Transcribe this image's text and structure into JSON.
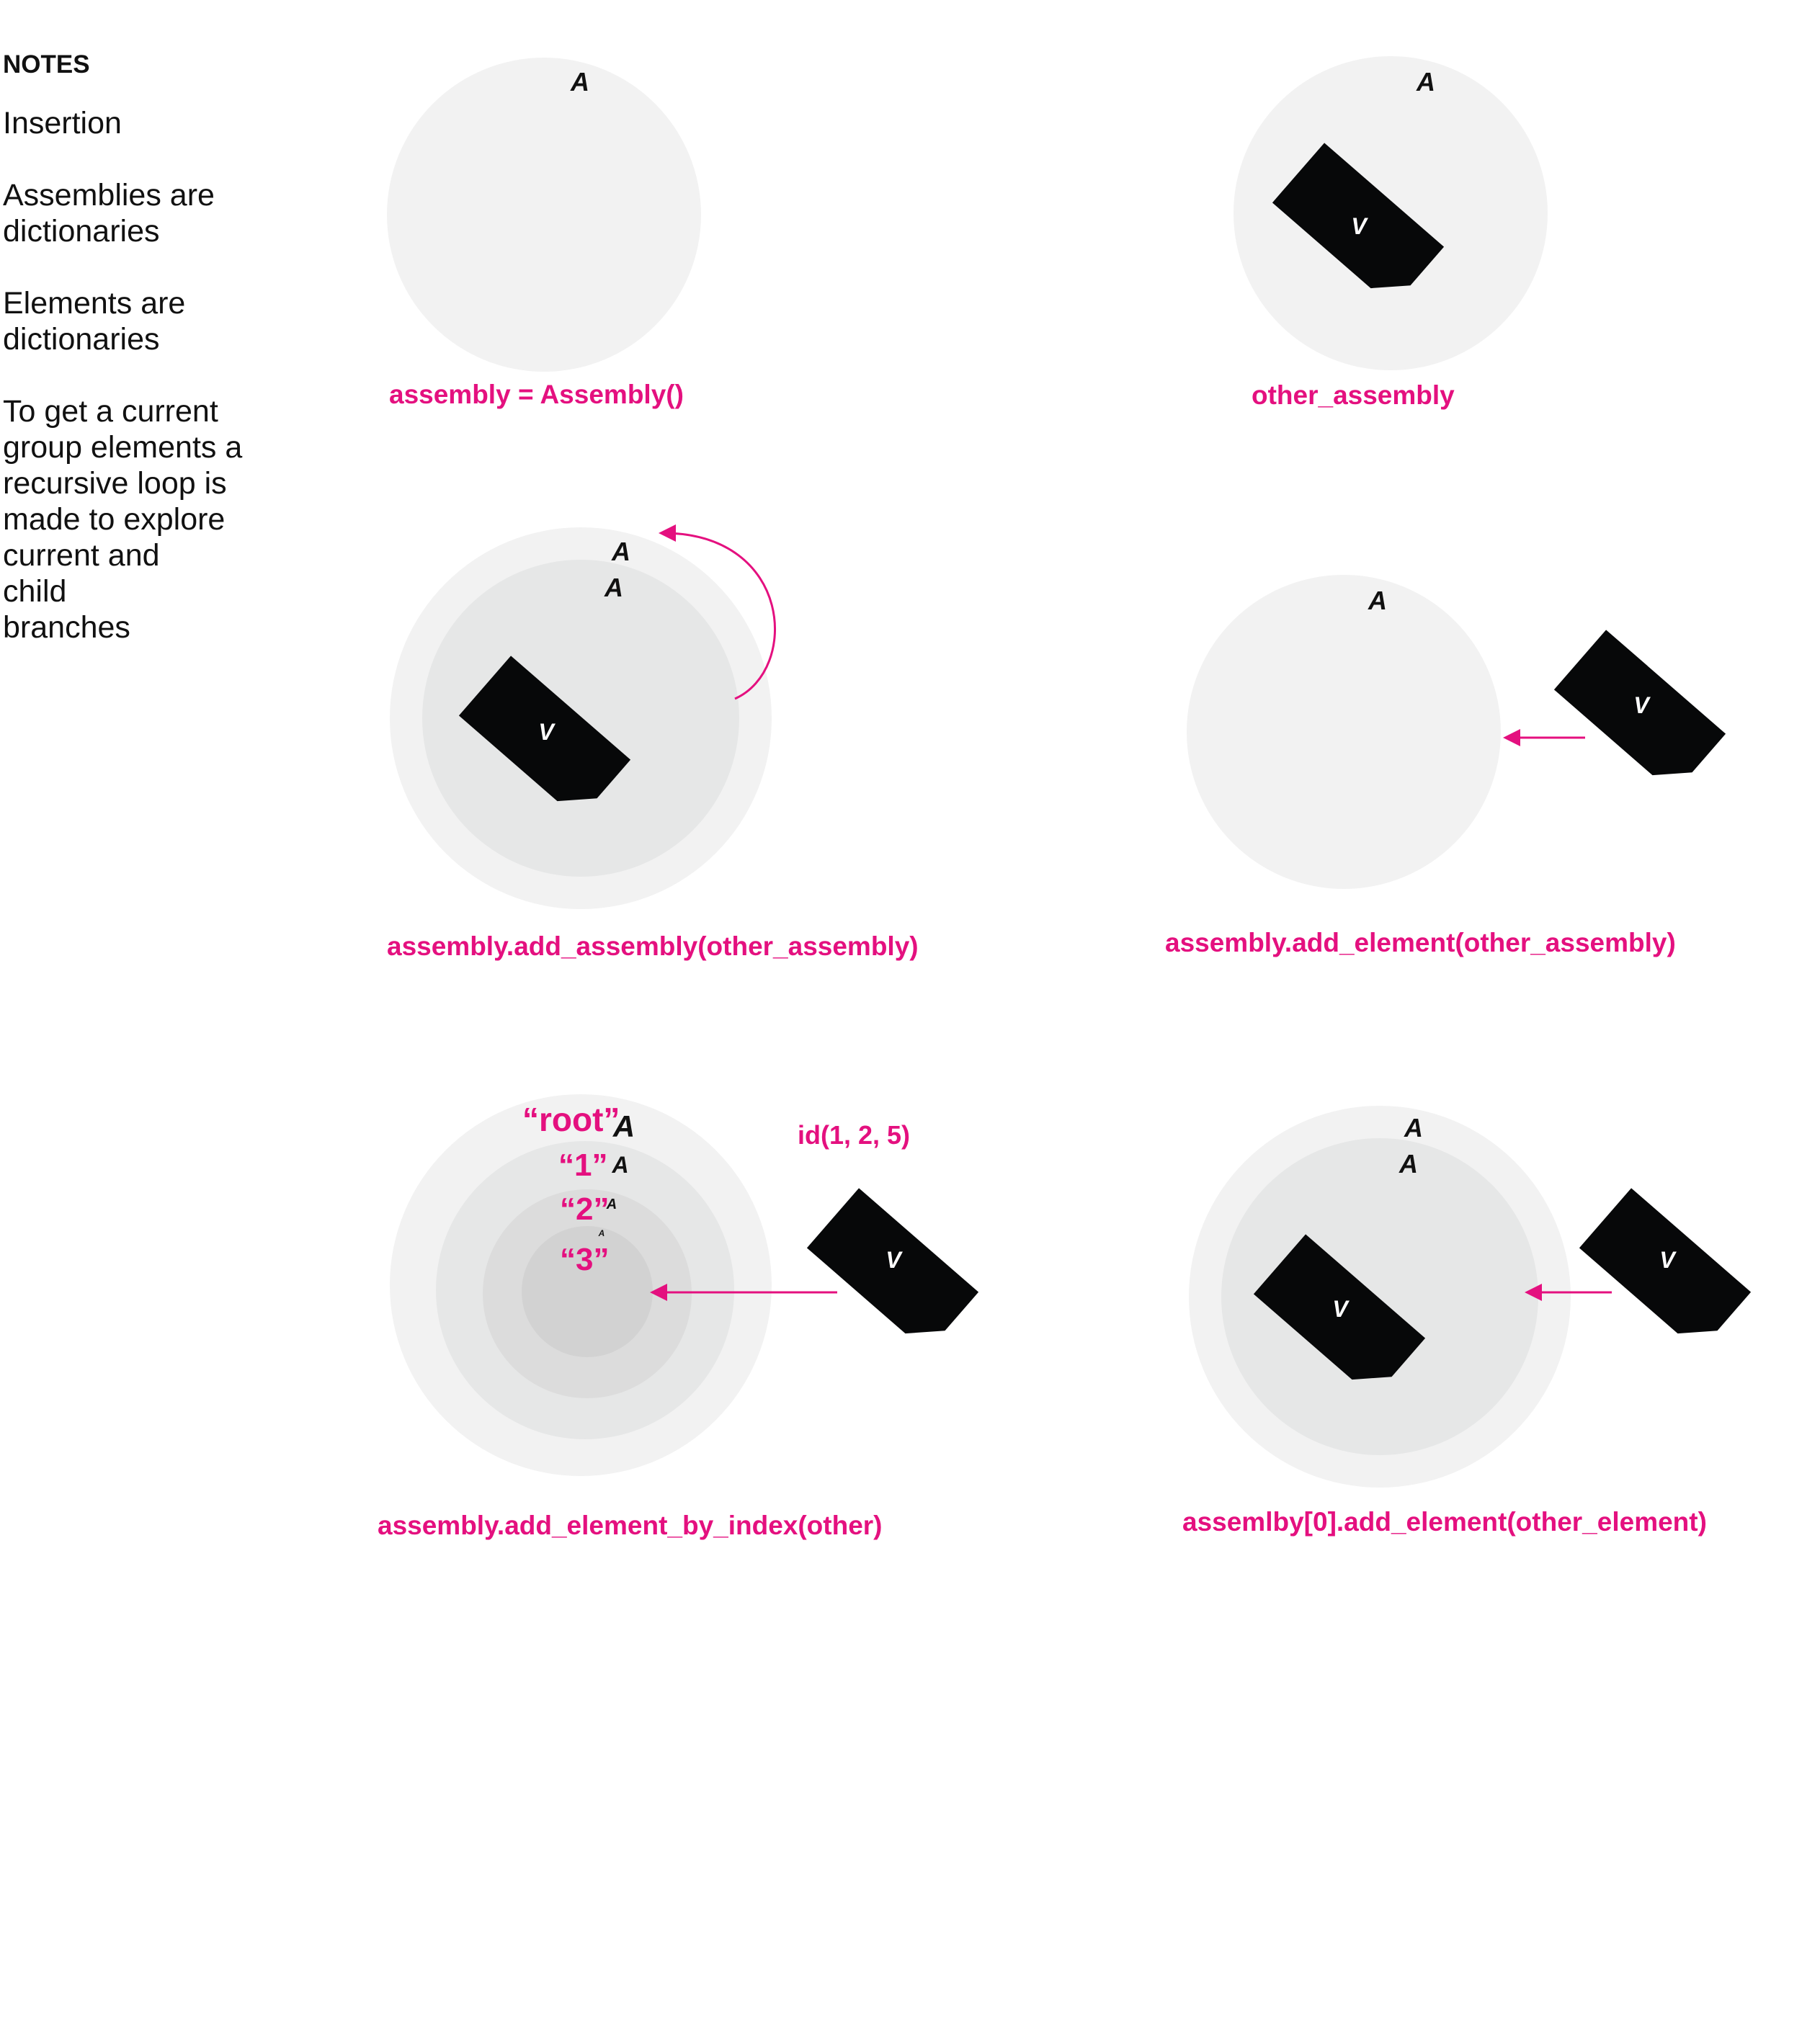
{
  "notes": {
    "title": "NOTES",
    "lines": [
      "Insertion",
      "Assemblies are\ndictionaries",
      "Elements are\ndictionaries",
      "To get a current\ngroup elements a\nrecursive loop is\nmade to explore\ncurrent and\nchild\nbranches"
    ]
  },
  "symbols": {
    "assembly": "A",
    "element": "V"
  },
  "captions": {
    "c1": "assembly = Assembly()",
    "c2": "other_assembly",
    "c3": "assembly.add_assembly(other_assembly)",
    "c4": "assembly.add_element(other_assembly)",
    "c5": "assembly.add_element_by_index(other)",
    "c6": "assemlby[0].add_element(other_element)"
  },
  "index_labels": {
    "root": "“root”",
    "one": "“1”",
    "two": "“2”",
    "three": "“3”",
    "id": "id(1, 2, 5)"
  },
  "colors": {
    "accent": "#e4107f",
    "outer_circle": "#f2f2f2",
    "inner_circle": "#e6e7e7",
    "inner_circle_2": "#dcdcdc",
    "inner_circle_3": "#d2d2d2",
    "element": "#070809"
  }
}
